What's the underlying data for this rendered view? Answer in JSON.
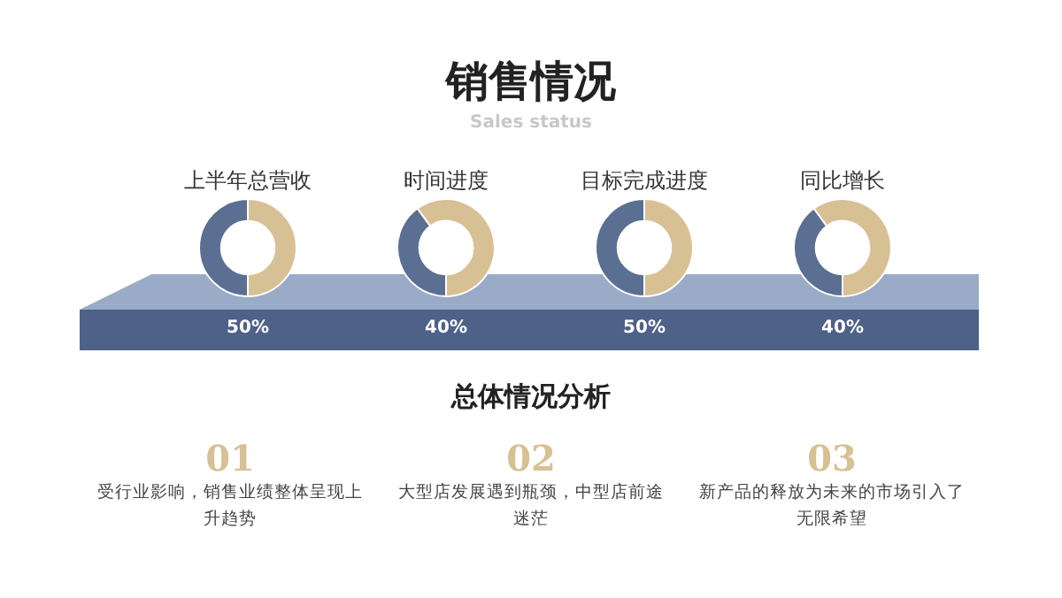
{
  "chart_data": [
    {
      "type": "other",
      "title": "销售情况",
      "subtitle": "Sales status"
    },
    {
      "type": "donut",
      "title": "上半年总营收",
      "categories": [
        null,
        null
      ],
      "values": [
        50,
        50
      ],
      "colors": [
        "#5b6f93",
        "#d8c095"
      ],
      "value_labels": [
        "50%",
        null
      ]
    },
    {
      "type": "donut",
      "title": "时间进度",
      "categories": [
        null,
        null
      ],
      "values": [
        40,
        60
      ],
      "colors": [
        "#5b6f93",
        "#d8c095"
      ],
      "value_labels": [
        "40%",
        null
      ]
    },
    {
      "type": "donut",
      "title": "目标完成进度",
      "categories": [
        null,
        null
      ],
      "values": [
        50,
        50
      ],
      "colors": [
        "#5b6f93",
        "#d8c095"
      ],
      "value_labels": [
        "50%",
        null
      ]
    },
    {
      "type": "donut",
      "title": "同比增长",
      "categories": [
        null,
        null
      ],
      "values": [
        40,
        60
      ],
      "colors": [
        "#5b6f93",
        "#d8c095"
      ],
      "value_labels": [
        "40%",
        null
      ]
    },
    {
      "type": "other",
      "title": "总体情况分析",
      "annotations": [
        "01",
        "受行业影响，销售业绩整体呈现上升趋势",
        "02",
        "大型店发展遇到瓶颈，中型店前途迷茫",
        "03",
        "新产品的释放为未来的市场引入了无限希望"
      ]
    }
  ]
}
